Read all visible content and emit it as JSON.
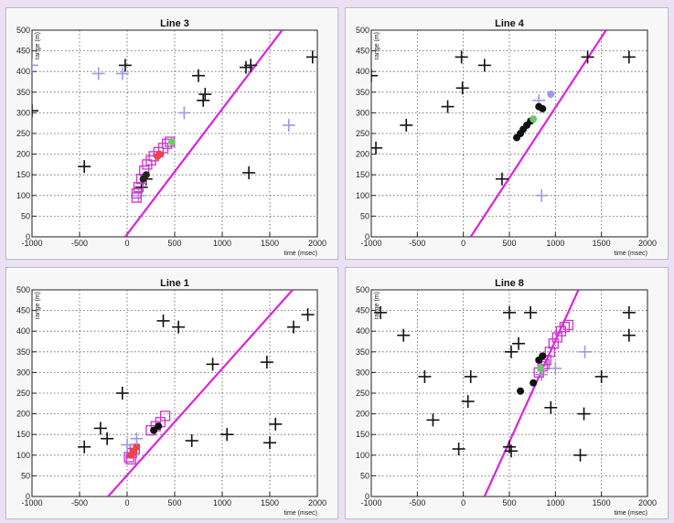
{
  "chart_data": [
    {
      "type": "scatter",
      "title": "Line 3",
      "xlabel": "time (msec)",
      "ylabel": "range (m)",
      "xlim": [
        -1000,
        2000
      ],
      "ylim": [
        0,
        500
      ],
      "xticks": [
        "-1000",
        "-500",
        "0",
        "500",
        "1000",
        "1500",
        "2000"
      ],
      "yticks": [
        "0",
        "50",
        "100",
        "150",
        "200",
        "250",
        "300",
        "350",
        "400",
        "450",
        "500"
      ],
      "grid": true,
      "fit_line": [
        [
          -20,
          0
        ],
        [
          1630,
          500
        ]
      ],
      "series": [
        {
          "marker": "cross",
          "color": "#111111",
          "points": [
            [
              -20,
              415
            ],
            [
              -450,
              170
            ],
            [
              750,
              390
            ],
            [
              800,
              330
            ],
            [
              820,
              345
            ],
            [
              1250,
              410
            ],
            [
              1300,
              415
            ],
            [
              1280,
              155
            ],
            [
              1950,
              435
            ],
            [
              -1000,
              305
            ],
            [
              150,
              120
            ],
            [
              200,
              140
            ]
          ]
        },
        {
          "marker": "cross",
          "color": "#9a9ae6",
          "points": [
            [
              -1000,
              415
            ],
            [
              -300,
              395
            ],
            [
              -50,
              395
            ],
            [
              1700,
              270
            ],
            [
              600,
              300
            ],
            [
              120,
              100
            ]
          ]
        },
        {
          "marker": "square",
          "color": "#cc33cc",
          "points": [
            [
              100,
              105
            ],
            [
              120,
              120
            ],
            [
              150,
              140
            ],
            [
              180,
              160
            ],
            [
              210,
              175
            ],
            [
              250,
              185
            ],
            [
              280,
              195
            ],
            [
              330,
              205
            ],
            [
              380,
              215
            ],
            [
              420,
              225
            ],
            [
              450,
              230
            ],
            [
              100,
              95
            ]
          ]
        },
        {
          "marker": "dot",
          "color": "#ee4444",
          "points": [
            [
              320,
              195
            ],
            [
              340,
              200
            ]
          ]
        },
        {
          "marker": "dot",
          "color": "#66cc66",
          "points": [
            [
              470,
              230
            ]
          ]
        },
        {
          "marker": "dot",
          "color": "#222222",
          "points": [
            [
              170,
              140
            ],
            [
              200,
              150
            ]
          ]
        }
      ]
    },
    {
      "type": "scatter",
      "title": "Line 4",
      "xlabel": "time (msec)",
      "ylabel": "range (m)",
      "xlim": [
        -1000,
        2000
      ],
      "ylim": [
        0,
        500
      ],
      "xticks": [
        "-1000",
        "-500",
        "0",
        "500",
        "1000",
        "1500",
        "2000"
      ],
      "yticks": [
        "0",
        "50",
        "100",
        "150",
        "200",
        "250",
        "300",
        "350",
        "400",
        "450",
        "500"
      ],
      "grid": true,
      "fit_line": [
        [
          80,
          0
        ],
        [
          1550,
          500
        ]
      ],
      "series": [
        {
          "marker": "cross",
          "color": "#111111",
          "points": [
            [
              -1000,
              390
            ],
            [
              -950,
              215
            ],
            [
              -620,
              270
            ],
            [
              -170,
              315
            ],
            [
              -20,
              435
            ],
            [
              -10,
              360
            ],
            [
              230,
              415
            ],
            [
              420,
              140
            ],
            [
              1350,
              435
            ],
            [
              1800,
              435
            ]
          ]
        },
        {
          "marker": "cross",
          "color": "#9a9ae6",
          "points": [
            [
              850,
              100
            ],
            [
              820,
              330
            ]
          ]
        },
        {
          "marker": "dot",
          "color": "#111111",
          "points": [
            [
              580,
              240
            ],
            [
              620,
              250
            ],
            [
              650,
              260
            ],
            [
              690,
              270
            ],
            [
              730,
              280
            ],
            [
              820,
              315
            ],
            [
              860,
              310
            ]
          ]
        },
        {
          "marker": "dot",
          "color": "#66cc66",
          "points": [
            [
              760,
              285
            ]
          ]
        },
        {
          "marker": "dot",
          "color": "#9a9ae6",
          "points": [
            [
              950,
              345
            ]
          ]
        }
      ]
    },
    {
      "type": "scatter",
      "title": "Line 1",
      "xlabel": "time (msec)",
      "ylabel": "range (m)",
      "xlim": [
        -1000,
        2000
      ],
      "ylim": [
        0,
        500
      ],
      "xticks": [
        "-1000",
        "-500",
        "0",
        "500",
        "1000",
        "1500",
        "2000"
      ],
      "yticks": [
        "0",
        "50",
        "100",
        "150",
        "200",
        "250",
        "300",
        "350",
        "400",
        "450",
        "500"
      ],
      "grid": true,
      "fit_line": [
        [
          -200,
          0
        ],
        [
          1740,
          500
        ]
      ],
      "series": [
        {
          "marker": "cross",
          "color": "#111111",
          "points": [
            [
              -450,
              120
            ],
            [
              -280,
              165
            ],
            [
              -210,
              140
            ],
            [
              -50,
              250
            ],
            [
              380,
              425
            ],
            [
              540,
              410
            ],
            [
              680,
              135
            ],
            [
              900,
              320
            ],
            [
              1050,
              150
            ],
            [
              1470,
              325
            ],
            [
              1500,
              130
            ],
            [
              1560,
              175
            ],
            [
              1750,
              410
            ],
            [
              1900,
              440
            ]
          ]
        },
        {
          "marker": "square",
          "color": "#cc33cc",
          "points": [
            [
              20,
              95
            ],
            [
              50,
              105
            ],
            [
              80,
              115
            ],
            [
              250,
              160
            ],
            [
              300,
              170
            ],
            [
              350,
              180
            ],
            [
              400,
              195
            ],
            [
              40,
              90
            ]
          ]
        },
        {
          "marker": "dot",
          "color": "#ee4444",
          "points": [
            [
              40,
              100
            ],
            [
              70,
              110
            ],
            [
              100,
              120
            ]
          ]
        },
        {
          "marker": "dot",
          "color": "#111111",
          "points": [
            [
              280,
              160
            ],
            [
              330,
              170
            ]
          ]
        },
        {
          "marker": "cross",
          "color": "#9a9ae6",
          "points": [
            [
              100,
              140
            ],
            [
              0,
              125
            ]
          ]
        }
      ]
    },
    {
      "type": "scatter",
      "title": "Line 8",
      "xlabel": "time (msec)",
      "ylabel": "range (m)",
      "xlim": [
        -1000,
        2000
      ],
      "ylim": [
        0,
        500
      ],
      "xticks": [
        "-1000",
        "-500",
        "0",
        "500",
        "1000",
        "1500",
        "2000"
      ],
      "yticks": [
        "0",
        "50",
        "100",
        "150",
        "200",
        "250",
        "300",
        "350",
        "400",
        "450",
        "500"
      ],
      "grid": true,
      "fit_line": [
        [
          230,
          0
        ],
        [
          1250,
          500
        ]
      ],
      "series": [
        {
          "marker": "cross",
          "color": "#111111",
          "points": [
            [
              -900,
              445
            ],
            [
              -650,
              390
            ],
            [
              -420,
              290
            ],
            [
              -330,
              185
            ],
            [
              -50,
              115
            ],
            [
              50,
              230
            ],
            [
              80,
              290
            ],
            [
              500,
              445
            ],
            [
              520,
              350
            ],
            [
              600,
              370
            ],
            [
              730,
              445
            ],
            [
              950,
              215
            ],
            [
              1270,
              100
            ],
            [
              1310,
              200
            ],
            [
              1500,
              290
            ],
            [
              1800,
              445
            ],
            [
              1800,
              390
            ],
            [
              500,
              120
            ],
            [
              520,
              110
            ]
          ]
        },
        {
          "marker": "cross",
          "color": "#9a9ae6",
          "points": [
            [
              1320,
              350
            ],
            [
              1000,
              310
            ],
            [
              850,
              295
            ]
          ]
        },
        {
          "marker": "square",
          "color": "#cc33cc",
          "points": [
            [
              820,
              300
            ],
            [
              860,
              315
            ],
            [
              900,
              330
            ],
            [
              940,
              350
            ],
            [
              980,
              370
            ],
            [
              1020,
              385
            ],
            [
              1060,
              400
            ],
            [
              1100,
              410
            ],
            [
              1140,
              415
            ],
            [
              880,
              320
            ]
          ]
        },
        {
          "marker": "dot",
          "color": "#111111",
          "points": [
            [
              620,
              255
            ],
            [
              760,
              275
            ],
            [
              820,
              330
            ],
            [
              860,
              340
            ]
          ]
        },
        {
          "marker": "dot",
          "color": "#66cc66",
          "points": [
            [
              840,
              310
            ]
          ]
        }
      ]
    }
  ]
}
